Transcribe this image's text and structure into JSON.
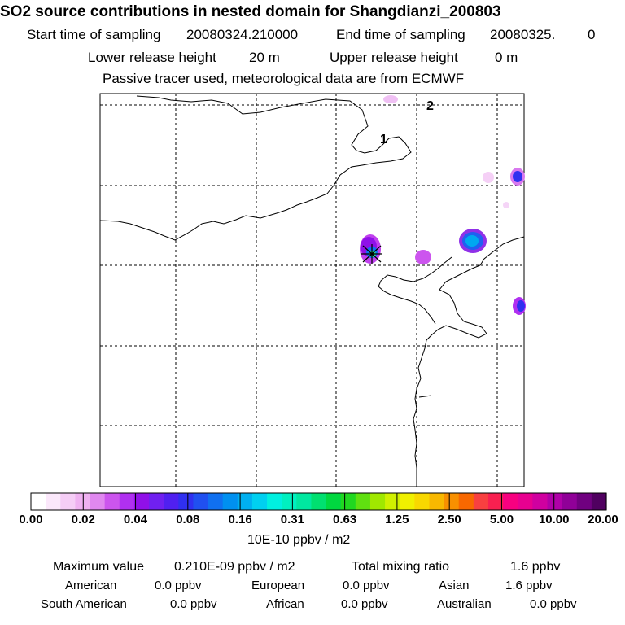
{
  "header": {
    "title": "SO2 source contributions in nested domain for Shangdianzi_200803",
    "start_label": "Start time of sampling",
    "start_value": "20080324.210000",
    "end_label": "End time of sampling",
    "end_value": "20080325.",
    "end_suffix": "0",
    "lower_label": "Lower release height",
    "lower_value": "20 m",
    "upper_label": "Upper release height",
    "upper_value": "0 m",
    "tracer_note": "Passive tracer used, meteorological data are from ECMWF"
  },
  "map": {
    "contour_labels": [
      "2",
      "1"
    ],
    "receptor_marker": "receptor-star-icon"
  },
  "colorbar": {
    "unit": "10E-10 ppbv / m2",
    "ticks": [
      "0.00",
      "0.02",
      "0.04",
      "0.08",
      "0.16",
      "0.31",
      "0.63",
      "1.25",
      "2.50",
      "5.00",
      "10.00",
      "20.00"
    ],
    "colors": [
      "#ffffff",
      "#fbe8fb",
      "#f5cdf6",
      "#efb1f1",
      "#e088ef",
      "#cc55ee",
      "#b030f0",
      "#9010e8",
      "#7020f0",
      "#5020f0",
      "#3030f0",
      "#2050f0",
      "#1070f0",
      "#0090f0",
      "#00b0f0",
      "#00d0f0",
      "#00f0e0",
      "#00f0c0",
      "#00e8a0",
      "#00e070",
      "#00d840",
      "#20d820",
      "#60e010",
      "#a0e800",
      "#d0f000",
      "#f0f000",
      "#f8d800",
      "#f8b800",
      "#f89000",
      "#f86800",
      "#f84040",
      "#f82050",
      "#f80080",
      "#e80090",
      "#d000a0",
      "#b000a8",
      "#900098",
      "#700080",
      "#500060"
    ]
  },
  "footer": {
    "max_label": "Maximum value",
    "max_value": "0.210E-09 ppbv / m2",
    "total_label": "Total mixing ratio",
    "total_value": "1.6 ppbv",
    "regions": [
      {
        "name": "American",
        "value": "0.0 ppbv"
      },
      {
        "name": "European",
        "value": "0.0 ppbv"
      },
      {
        "name": "Asian",
        "value": "1.6 ppbv"
      },
      {
        "name": "South American",
        "value": "0.0 ppbv"
      },
      {
        "name": "African",
        "value": "0.0 ppbv"
      },
      {
        "name": "Australian",
        "value": "0.0 ppbv"
      }
    ]
  }
}
